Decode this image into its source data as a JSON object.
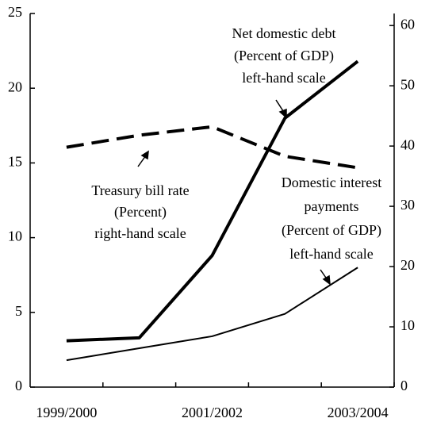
{
  "chart_data": {
    "type": "line",
    "categories": [
      "1999/2000",
      null,
      "2001/2002",
      null,
      "2003/2004"
    ],
    "series": [
      {
        "color": "#000000",
        "width": 4,
        "dash": false,
        "axis": "y",
        "values": [
          3.1,
          3.3,
          8.8,
          18.0,
          21.8
        ]
      },
      {
        "color": "#000000",
        "width": 2,
        "dash": false,
        "axis": "y",
        "values": [
          1.8,
          2.6,
          3.4,
          4.9,
          8.0
        ]
      },
      {
        "color": "#000000",
        "width": 4,
        "dash": true,
        "axis": "y2",
        "values": [
          39.8,
          41.8,
          43.2,
          38.3,
          36.4
        ]
      }
    ],
    "ylim": [
      0,
      25
    ],
    "yticks": [
      0,
      5,
      10,
      15,
      20,
      25
    ],
    "y2lim": [
      0,
      62
    ],
    "y2ticks": [
      0,
      10,
      20,
      30,
      40,
      50,
      60
    ],
    "annotations": [
      [
        "Net domestic debt",
        "(Percent of GDP)",
        "left-hand scale"
      ],
      [
        "Treasury bill rate",
        "(Percent)",
        "right-hand scale"
      ],
      [
        "Domestic interest",
        "payments",
        "(Percent of GDP)",
        "left-hand scale"
      ]
    ]
  }
}
